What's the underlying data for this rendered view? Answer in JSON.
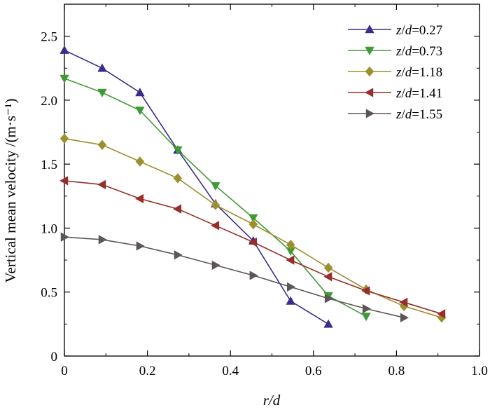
{
  "chart_data": {
    "type": "line",
    "xlabel": "r/d",
    "ylabel": "Vertical mean velocity /(m·s⁻¹)",
    "xlim": [
      0,
      1.0
    ],
    "ylim": [
      0,
      2.75
    ],
    "xticks": [
      "0",
      "0.2",
      "0.4",
      "0.6",
      "0.8",
      "1.0"
    ],
    "yticks": [
      "0",
      "0.5",
      "1.0",
      "1.5",
      "2.0",
      "2.5"
    ],
    "grid": false,
    "legend_position": "top-right",
    "series": [
      {
        "name": "z/d=0.27",
        "color": "#3a2d8c",
        "marker": "triangle-up",
        "x": [
          0,
          0.091,
          0.182,
          0.273,
          0.364,
          0.455,
          0.545,
          0.636
        ],
        "y": [
          2.39,
          2.25,
          2.06,
          1.61,
          1.19,
          0.9,
          0.43,
          0.25
        ]
      },
      {
        "name": "z/d=0.73",
        "color": "#3f9a36",
        "marker": "triangle-down",
        "x": [
          0,
          0.091,
          0.182,
          0.273,
          0.364,
          0.455,
          0.545,
          0.636,
          0.727
        ],
        "y": [
          2.17,
          2.06,
          1.92,
          1.61,
          1.33,
          1.08,
          0.82,
          0.47,
          0.31
        ]
      },
      {
        "name": "z/d=1.18",
        "color": "#9c8f2e",
        "marker": "diamond",
        "x": [
          0,
          0.091,
          0.182,
          0.273,
          0.364,
          0.455,
          0.545,
          0.636,
          0.727,
          0.818,
          0.909
        ],
        "y": [
          1.7,
          1.65,
          1.52,
          1.39,
          1.18,
          1.03,
          0.87,
          0.69,
          0.52,
          0.39,
          0.3
        ]
      },
      {
        "name": "z/d=1.41",
        "color": "#962e29",
        "marker": "triangle-left",
        "x": [
          0,
          0.091,
          0.182,
          0.273,
          0.364,
          0.455,
          0.545,
          0.636,
          0.727,
          0.818,
          0.909
        ],
        "y": [
          1.37,
          1.34,
          1.23,
          1.15,
          1.02,
          0.89,
          0.75,
          0.62,
          0.51,
          0.42,
          0.33
        ]
      },
      {
        "name": "z/d=1.55",
        "color": "#5e5656",
        "marker": "triangle-right",
        "x": [
          0,
          0.091,
          0.182,
          0.273,
          0.364,
          0.455,
          0.545,
          0.636,
          0.727,
          0.818
        ],
        "y": [
          0.93,
          0.91,
          0.86,
          0.79,
          0.71,
          0.63,
          0.54,
          0.45,
          0.37,
          0.3
        ]
      }
    ]
  }
}
